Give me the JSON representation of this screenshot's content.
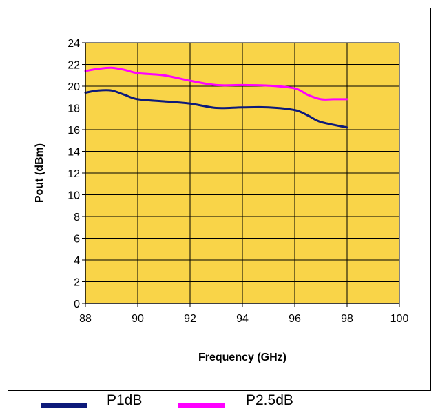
{
  "chart_data": {
    "type": "line",
    "title": "",
    "xlabel": "Frequency (GHz)",
    "ylabel": "Pout (dBm)",
    "xlim": [
      88,
      100
    ],
    "ylim": [
      0,
      24
    ],
    "xticks": [
      88,
      90,
      92,
      94,
      96,
      98,
      100
    ],
    "yticks": [
      0,
      2,
      4,
      6,
      8,
      10,
      12,
      14,
      16,
      18,
      20,
      22,
      24
    ],
    "grid": true,
    "legend_position": "bottom",
    "plot_background": "#f9d448",
    "series": [
      {
        "name": "P1dB",
        "color": "#0d1a7a",
        "x": [
          88,
          88.5,
          89,
          89.5,
          90,
          91,
          92,
          93,
          94,
          95,
          96,
          96.5,
          97,
          98
        ],
        "y": [
          19.4,
          19.6,
          19.6,
          19.2,
          18.8,
          18.6,
          18.4,
          18.0,
          18.05,
          18.05,
          17.8,
          17.3,
          16.7,
          16.2
        ]
      },
      {
        "name": "P2.5dB",
        "color": "#ff00ff",
        "x": [
          88,
          88.5,
          89,
          89.5,
          90,
          91,
          92,
          93,
          94,
          95,
          96,
          96.5,
          97,
          97.5,
          98
        ],
        "y": [
          21.4,
          21.6,
          21.7,
          21.5,
          21.2,
          21.0,
          20.5,
          20.1,
          20.1,
          20.05,
          19.8,
          19.2,
          18.8,
          18.8,
          18.8
        ]
      }
    ]
  }
}
